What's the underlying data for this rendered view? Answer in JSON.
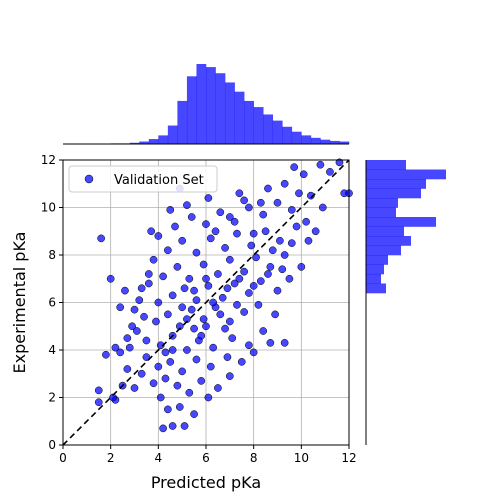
{
  "chart_data": [
    {
      "type": "scatter",
      "xlabel": "Predicted pKa",
      "ylabel": "Experimental pKa",
      "xlim": [
        0,
        12
      ],
      "ylim": [
        0,
        12
      ],
      "xticks": [
        "0",
        "2",
        "4",
        "6",
        "8",
        "10",
        "12"
      ],
      "yticks": [
        "0",
        "2",
        "4",
        "6",
        "8",
        "10",
        "12"
      ],
      "grid": true,
      "legend": {
        "placement": "upper-left",
        "entries": [
          "Validation Set"
        ]
      },
      "reference_line": {
        "style": "dashed",
        "color": "#000000",
        "from": [
          0,
          0
        ],
        "to": [
          12,
          12
        ]
      },
      "series": [
        {
          "name": "Validation Set",
          "color": "#0000ff",
          "edge_color": "#000000",
          "points": [
            [
              1.6,
              8.7
            ],
            [
              2.0,
              7.0
            ],
            [
              1.5,
              1.8
            ],
            [
              1.5,
              2.3
            ],
            [
              2.2,
              1.9
            ],
            [
              2.5,
              2.5
            ],
            [
              2.7,
              3.2
            ],
            [
              3.0,
              2.4
            ],
            [
              2.4,
              3.9
            ],
            [
              1.8,
              3.8
            ],
            [
              3.5,
              3.7
            ],
            [
              2.8,
              4.1
            ],
            [
              3.1,
              4.8
            ],
            [
              2.9,
              5.0
            ],
            [
              3.4,
              5.4
            ],
            [
              2.6,
              6.5
            ],
            [
              3.3,
              6.6
            ],
            [
              3.6,
              7.2
            ],
            [
              3.2,
              6.1
            ],
            [
              2.7,
              4.5
            ],
            [
              4.2,
              0.7
            ],
            [
              4.6,
              0.8
            ],
            [
              5.1,
              0.8
            ],
            [
              4.4,
              1.5
            ],
            [
              4.9,
              1.6
            ],
            [
              5.5,
              1.3
            ],
            [
              4.1,
              2.0
            ],
            [
              3.8,
              2.6
            ],
            [
              4.3,
              2.8
            ],
            [
              4.8,
              2.5
            ],
            [
              5.3,
              2.2
            ],
            [
              5.8,
              2.7
            ],
            [
              6.1,
              2.0
            ],
            [
              6.5,
              2.4
            ],
            [
              7.0,
              2.9
            ],
            [
              4.0,
              3.3
            ],
            [
              4.5,
              3.5
            ],
            [
              5.0,
              3.1
            ],
            [
              5.6,
              3.6
            ],
            [
              6.2,
              3.3
            ],
            [
              6.9,
              3.7
            ],
            [
              7.5,
              3.5
            ],
            [
              8.0,
              3.9
            ],
            [
              8.7,
              4.3
            ],
            [
              9.3,
              4.3
            ],
            [
              4.1,
              4.2
            ],
            [
              4.6,
              4.6
            ],
            [
              5.2,
              4.0
            ],
            [
              5.7,
              4.4
            ],
            [
              6.3,
              4.1
            ],
            [
              7.1,
              4.5
            ],
            [
              7.8,
              4.2
            ],
            [
              8.4,
              4.8
            ],
            [
              3.9,
              5.2
            ],
            [
              4.4,
              5.5
            ],
            [
              4.9,
              5.0
            ],
            [
              5.4,
              5.7
            ],
            [
              5.9,
              5.3
            ],
            [
              6.4,
              5.8
            ],
            [
              7.0,
              5.2
            ],
            [
              7.6,
              5.6
            ],
            [
              8.2,
              5.9
            ],
            [
              8.9,
              5.5
            ],
            [
              4.0,
              6.0
            ],
            [
              4.6,
              6.3
            ],
            [
              5.1,
              6.6
            ],
            [
              5.6,
              6.1
            ],
            [
              6.1,
              6.7
            ],
            [
              6.7,
              6.2
            ],
            [
              7.2,
              6.8
            ],
            [
              7.8,
              6.4
            ],
            [
              8.3,
              6.9
            ],
            [
              9.0,
              6.5
            ],
            [
              9.5,
              7.0
            ],
            [
              4.2,
              7.1
            ],
            [
              4.8,
              7.5
            ],
            [
              5.3,
              7.0
            ],
            [
              5.9,
              7.6
            ],
            [
              6.5,
              7.2
            ],
            [
              7.0,
              7.8
            ],
            [
              7.6,
              7.3
            ],
            [
              8.1,
              7.9
            ],
            [
              8.7,
              7.5
            ],
            [
              9.3,
              8.0
            ],
            [
              10.0,
              7.5
            ],
            [
              4.4,
              8.2
            ],
            [
              5.0,
              8.6
            ],
            [
              5.6,
              8.1
            ],
            [
              6.2,
              8.7
            ],
            [
              6.8,
              8.3
            ],
            [
              7.3,
              8.9
            ],
            [
              7.9,
              8.4
            ],
            [
              8.5,
              9.0
            ],
            [
              9.1,
              8.6
            ],
            [
              9.8,
              9.2
            ],
            [
              10.3,
              8.6
            ],
            [
              4.7,
              9.2
            ],
            [
              5.4,
              9.6
            ],
            [
              6.0,
              9.3
            ],
            [
              6.6,
              9.8
            ],
            [
              7.2,
              9.4
            ],
            [
              7.8,
              10.0
            ],
            [
              8.4,
              9.7
            ],
            [
              9.0,
              10.2
            ],
            [
              9.6,
              9.9
            ],
            [
              10.4,
              10.5
            ],
            [
              5.2,
              10.1
            ],
            [
              6.1,
              10.4
            ],
            [
              7.4,
              10.6
            ],
            [
              8.6,
              10.8
            ],
            [
              9.3,
              11.0
            ],
            [
              10.1,
              11.4
            ],
            [
              10.8,
              11.8
            ],
            [
              11.2,
              11.5
            ],
            [
              11.8,
              10.6
            ],
            [
              12.0,
              10.6
            ],
            [
              11.6,
              11.9
            ],
            [
              3.7,
              9.0
            ],
            [
              4.9,
              10.8
            ],
            [
              9.7,
              11.7
            ],
            [
              4.0,
              8.8
            ],
            [
              3.5,
              4.4
            ],
            [
              4.3,
              3.9
            ],
            [
              5.5,
              4.9
            ],
            [
              6.0,
              5.0
            ],
            [
              6.6,
              5.5
            ],
            [
              5.0,
              5.8
            ],
            [
              5.5,
              6.5
            ],
            [
              6.3,
              6.0
            ],
            [
              6.9,
              6.6
            ],
            [
              7.4,
              7.0
            ],
            [
              6.0,
              7.0
            ],
            [
              5.2,
              5.3
            ],
            [
              4.6,
              4.0
            ],
            [
              5.8,
              4.6
            ],
            [
              6.8,
              4.9
            ],
            [
              7.3,
              5.9
            ],
            [
              8.0,
              6.7
            ],
            [
              8.6,
              7.2
            ],
            [
              9.2,
              7.4
            ],
            [
              6.4,
              9.0
            ],
            [
              7.0,
              9.6
            ],
            [
              8.0,
              8.9
            ],
            [
              8.8,
              8.2
            ],
            [
              9.6,
              8.5
            ],
            [
              10.2,
              9.4
            ],
            [
              10.6,
              9.0
            ],
            [
              3.8,
              7.8
            ],
            [
              4.5,
              9.9
            ],
            [
              2.4,
              5.8
            ],
            [
              3.0,
              5.7
            ],
            [
              3.6,
              6.8
            ],
            [
              2.2,
              4.1
            ],
            [
              3.3,
              3.0
            ],
            [
              2.1,
              2.0
            ],
            [
              10.9,
              10.0
            ],
            [
              9.9,
              10.6
            ],
            [
              8.3,
              10.2
            ],
            [
              7.6,
              10.3
            ]
          ]
        }
      ]
    },
    {
      "type": "histogram",
      "orientation": "vertical",
      "axis": "Predicted pKa",
      "color": "#0000ff",
      "bin_start": 0,
      "bin_width": 0.4,
      "counts": [
        0,
        0,
        0,
        0,
        0,
        1,
        1,
        2,
        4,
        8,
        14,
        30,
        70,
        110,
        130,
        125,
        115,
        100,
        85,
        70,
        60,
        48,
        38,
        28,
        20,
        14,
        10,
        7,
        5,
        4
      ]
    },
    {
      "type": "histogram",
      "orientation": "horizontal",
      "axis": "Experimental pKa",
      "color": "#0000ff",
      "bin_start": 0,
      "bin_width": 0.4,
      "counts": [
        0,
        0,
        0,
        0,
        0,
        0,
        0,
        0,
        0,
        0,
        0,
        0,
        0,
        0,
        0,
        0,
        20,
        15,
        18,
        22,
        35,
        45,
        38,
        70,
        30,
        32,
        55,
        60,
        80,
        40
      ]
    }
  ]
}
